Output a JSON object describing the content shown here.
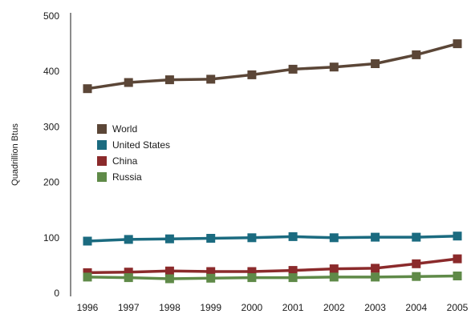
{
  "chart_data": {
    "type": "line",
    "title": "",
    "xlabel": "",
    "ylabel": "Quadrillion Btus",
    "ylim": [
      0,
      500
    ],
    "yticks": [
      "0",
      "100",
      "200",
      "300",
      "400",
      "500"
    ],
    "categories": [
      "1996",
      "1997",
      "1998",
      "1999",
      "2000",
      "2001",
      "2002",
      "2003",
      "2004",
      "2005"
    ],
    "grid": false,
    "legend_position": "left-center",
    "marker": "square",
    "series": [
      {
        "name": "World",
        "color": "#5b4637",
        "values": [
          369,
          380,
          385,
          386,
          394,
          404,
          408,
          414,
          430,
          450
        ]
      },
      {
        "name": "United States",
        "color": "#1b6b80",
        "values": [
          94,
          97,
          98,
          99,
          100,
          102,
          100,
          101,
          101,
          103
        ]
      },
      {
        "name": "China",
        "color": "#8b2a2b",
        "values": [
          37,
          38,
          40,
          39,
          39,
          41,
          44,
          45,
          53,
          62
        ]
      },
      {
        "name": "Russia",
        "color": "#5f8a48",
        "values": [
          29,
          28,
          26,
          27,
          28,
          28,
          29,
          29,
          30,
          31
        ]
      }
    ]
  }
}
